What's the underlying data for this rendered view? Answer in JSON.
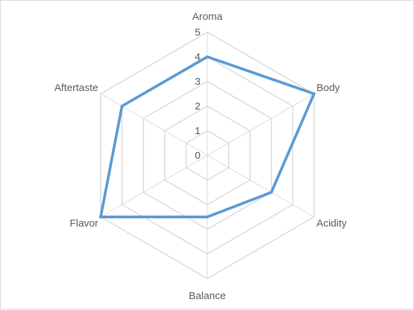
{
  "chart_data": {
    "type": "radar",
    "categories": [
      "Aroma",
      "Body",
      "Acidity",
      "Balance",
      "Flavor",
      "Aftertaste"
    ],
    "series": [
      {
        "values": [
          4,
          5,
          3,
          2.5,
          5,
          4
        ],
        "color": "#5b9bd5"
      }
    ],
    "rlim": [
      0,
      5
    ],
    "ticks": [
      "0",
      "1",
      "2",
      "3",
      "4",
      "5"
    ],
    "grid": true,
    "legend": "none",
    "grid_color": "#d9d9d9"
  }
}
